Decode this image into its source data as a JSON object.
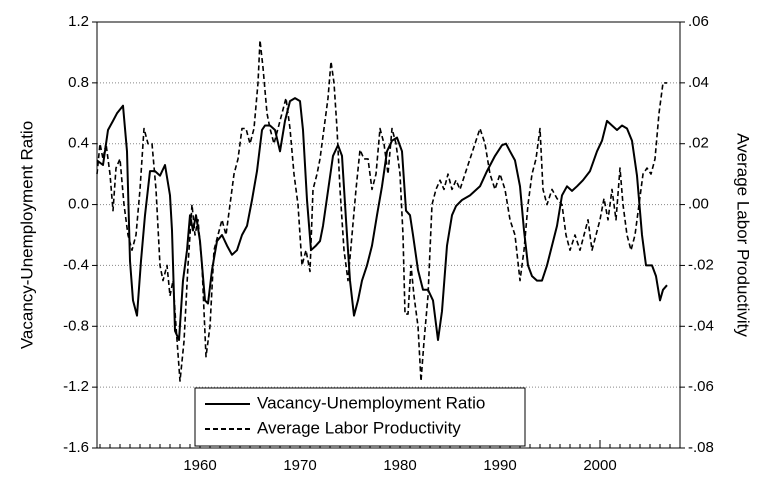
{
  "chart_data": {
    "type": "line",
    "y_label": "Vacancy-Unemployment Ratio",
    "y2_label": "Average Labor Productivity",
    "xlim": [
      1949.7,
      2008.0
    ],
    "xticks": [
      1960,
      1970,
      1980,
      1990,
      2000
    ],
    "ylim": [
      -1.6,
      1.2
    ],
    "yticks": [
      -1.6,
      -1.2,
      -0.8,
      -0.4,
      {
        "value": 0,
        "label": "0.0"
      },
      0.4,
      0.8,
      1.2
    ],
    "y2lim": [
      -0.08,
      0.06
    ],
    "y2ticks": [
      {
        "value": -0.08,
        "label": "-.08"
      },
      {
        "value": -0.06,
        "label": "-.06"
      },
      {
        "value": -0.04,
        "label": "-.04"
      },
      {
        "value": -0.02,
        "label": "-.02"
      },
      {
        "value": 0,
        "label": ".00"
      },
      {
        "value": 0.02,
        "label": ".02"
      },
      {
        "value": 0.04,
        "label": ".04"
      },
      {
        "value": 0.06,
        "label": ".06"
      }
    ],
    "grid": true,
    "legend": "lower center",
    "series": [
      {
        "name": "Vacancy-Unemployment Ratio",
        "color": "#000000",
        "dash": "solid",
        "x": [
          1949.7,
          1950.3,
          1950.8,
          1951.3,
          1951.7,
          1952.3,
          1952.7,
          1953.0,
          1953.3,
          1953.7,
          1954.1,
          1954.5,
          1955.0,
          1955.5,
          1956.0,
          1956.5,
          1957.0,
          1957.2,
          1957.5,
          1957.9,
          1958.3,
          1958.7,
          1959.0,
          1959.3,
          1959.6,
          1960.0,
          1960.5,
          1960.8,
          1961.2,
          1961.7,
          1962.2,
          1962.7,
          1963.2,
          1963.7,
          1964.2,
          1964.7,
          1965.2,
          1965.7,
          1966.2,
          1966.5,
          1967.0,
          1967.5,
          1968.0,
          1968.5,
          1969.0,
          1969.5,
          1970.0,
          1970.3,
          1970.7,
          1971.1,
          1971.6,
          1972.0,
          1972.3,
          1972.8,
          1973.3,
          1973.8,
          1974.2,
          1974.6,
          1975.0,
          1975.4,
          1975.8,
          1976.2,
          1976.7,
          1977.2,
          1977.7,
          1978.2,
          1978.7,
          1979.2,
          1979.7,
          1980.2,
          1980.6,
          1981.0,
          1981.3,
          1981.8,
          1982.3,
          1982.8,
          1983.3,
          1983.8,
          1984.2,
          1984.7,
          1985.2,
          1985.6,
          1986.2,
          1987.0,
          1988.0,
          1988.7,
          1989.5,
          1990.2,
          1990.6,
          1991.0,
          1991.5,
          1992.0,
          1992.4,
          1992.8,
          1993.2,
          1993.7,
          1994.2,
          1994.7,
          1995.2,
          1995.7,
          1996.2,
          1996.7,
          1997.2,
          1997.7,
          1998.3,
          1999.0,
          1999.7,
          2000.2,
          2000.7,
          2001.2,
          2001.7,
          2002.2,
          2002.7,
          2003.2,
          2003.7,
          2004.2,
          2004.6,
          2005.2,
          2005.6,
          2006.0,
          2006.3,
          2006.7
        ],
        "values": [
          0.29,
          0.26,
          0.49,
          0.55,
          0.6,
          0.65,
          0.35,
          -0.37,
          -0.63,
          -0.73,
          -0.37,
          -0.07,
          0.22,
          0.22,
          0.19,
          0.26,
          0.06,
          -0.17,
          -0.83,
          -0.89,
          -0.5,
          -0.3,
          -0.07,
          -0.17,
          -0.07,
          -0.24,
          -0.63,
          -0.65,
          -0.43,
          -0.24,
          -0.2,
          -0.27,
          -0.33,
          -0.3,
          -0.2,
          -0.14,
          0.03,
          0.22,
          0.49,
          0.52,
          0.52,
          0.49,
          0.35,
          0.55,
          0.68,
          0.7,
          0.68,
          0.49,
          0.03,
          -0.3,
          -0.27,
          -0.24,
          -0.14,
          0.09,
          0.32,
          0.39,
          0.32,
          -0.1,
          -0.5,
          -0.73,
          -0.63,
          -0.5,
          -0.4,
          -0.27,
          -0.07,
          0.12,
          0.35,
          0.42,
          0.44,
          0.35,
          -0.04,
          -0.07,
          -0.2,
          -0.43,
          -0.56,
          -0.56,
          -0.63,
          -0.89,
          -0.7,
          -0.27,
          -0.07,
          -0.01,
          0.03,
          0.06,
          0.12,
          0.22,
          0.32,
          0.39,
          0.4,
          0.35,
          0.29,
          0.12,
          -0.17,
          -0.4,
          -0.47,
          -0.5,
          -0.5,
          -0.4,
          -0.27,
          -0.14,
          0.06,
          0.12,
          0.09,
          0.12,
          0.16,
          0.22,
          0.35,
          0.42,
          0.55,
          0.52,
          0.49,
          0.52,
          0.5,
          0.42,
          0.19,
          -0.2,
          -0.4,
          -0.4,
          -0.47,
          -0.63,
          -0.56,
          -0.53
        ]
      },
      {
        "name": "Average Labor Productivity",
        "color": "#000000",
        "dash": "dashed",
        "axis": "y2",
        "x": [
          1949.7,
          1950.0,
          1950.3,
          1950.6,
          1951.0,
          1951.3,
          1951.6,
          1952.0,
          1952.4,
          1952.8,
          1953.2,
          1953.6,
          1954.0,
          1954.4,
          1954.8,
          1955.2,
          1955.6,
          1956.0,
          1956.3,
          1956.7,
          1957.0,
          1957.3,
          1957.6,
          1958.0,
          1958.4,
          1958.8,
          1959.2,
          1959.5,
          1959.8,
          1960.2,
          1960.6,
          1961.0,
          1961.4,
          1961.8,
          1962.2,
          1962.6,
          1963.0,
          1963.4,
          1963.8,
          1964.2,
          1964.6,
          1965.0,
          1965.4,
          1965.8,
          1966.0,
          1966.3,
          1966.7,
          1967.0,
          1967.4,
          1967.8,
          1968.2,
          1968.6,
          1969.0,
          1969.4,
          1969.8,
          1970.2,
          1970.6,
          1971.0,
          1971.3,
          1971.7,
          1972.0,
          1972.4,
          1972.8,
          1973.1,
          1973.4,
          1973.7,
          1974.0,
          1974.4,
          1974.8,
          1975.2,
          1975.6,
          1976.0,
          1976.4,
          1976.8,
          1977.2,
          1977.6,
          1978.0,
          1978.4,
          1978.8,
          1979.2,
          1979.6,
          1980.0,
          1980.3,
          1980.5,
          1980.8,
          1981.1,
          1981.4,
          1981.8,
          1982.1,
          1982.4,
          1982.8,
          1983.2,
          1983.6,
          1984.0,
          1984.4,
          1984.8,
          1985.2,
          1985.6,
          1986.0,
          1986.5,
          1987.0,
          1987.5,
          1988.0,
          1988.5,
          1989.0,
          1989.5,
          1990.0,
          1990.5,
          1991.0,
          1991.5,
          1992.0,
          1992.4,
          1992.8,
          1993.2,
          1993.6,
          1994.0,
          1994.3,
          1994.7,
          1995.2,
          1995.7,
          1996.2,
          1996.6,
          1997.0,
          1997.5,
          1998.0,
          1998.4,
          1998.8,
          1999.2,
          1999.6,
          2000.0,
          2000.4,
          2000.8,
          2001.2,
          2001.6,
          2002.0,
          2002.3,
          2002.7,
          2003.1,
          2003.5,
          2003.9,
          2004.3,
          2004.7,
          2005.1,
          2005.5,
          2005.9,
          2006.3,
          2006.7
        ],
        "values": [
          0.01,
          0.02,
          0.015,
          0.02,
          0.01,
          -0.002,
          0.012,
          0.015,
          0.0,
          -0.01,
          -0.015,
          -0.01,
          0.005,
          0.025,
          0.02,
          0.02,
          0.005,
          -0.02,
          -0.025,
          -0.02,
          -0.03,
          -0.025,
          -0.04,
          -0.058,
          -0.045,
          -0.02,
          0.0,
          -0.01,
          -0.005,
          -0.02,
          -0.05,
          -0.04,
          -0.015,
          -0.01,
          -0.005,
          -0.01,
          0.0,
          0.01,
          0.015,
          0.025,
          0.025,
          0.02,
          0.025,
          0.04,
          0.054,
          0.045,
          0.03,
          0.025,
          0.02,
          0.025,
          0.03,
          0.035,
          0.025,
          0.01,
          0.0,
          -0.02,
          -0.015,
          -0.022,
          0.005,
          0.01,
          0.015,
          0.025,
          0.035,
          0.047,
          0.04,
          0.025,
          0.005,
          -0.015,
          -0.025,
          -0.01,
          0.005,
          0.018,
          0.015,
          0.015,
          0.005,
          0.01,
          0.025,
          0.02,
          0.01,
          0.025,
          0.02,
          0.01,
          -0.01,
          -0.036,
          -0.036,
          -0.02,
          -0.03,
          -0.04,
          -0.058,
          -0.045,
          -0.03,
          0.0,
          0.005,
          0.008,
          0.005,
          0.01,
          0.005,
          0.008,
          0.005,
          0.01,
          0.015,
          0.02,
          0.025,
          0.02,
          0.01,
          0.005,
          0.01,
          0.005,
          -0.005,
          -0.01,
          -0.025,
          -0.015,
          0.0,
          0.01,
          0.015,
          0.025,
          0.005,
          0.0,
          0.005,
          0.002,
          0.0,
          -0.01,
          -0.015,
          -0.01,
          -0.015,
          -0.01,
          -0.005,
          -0.015,
          -0.01,
          -0.005,
          0.002,
          -0.005,
          0.005,
          -0.005,
          0.012,
          0.0,
          -0.01,
          -0.015,
          -0.01,
          0.0,
          0.01,
          0.012,
          0.01,
          0.015,
          0.03,
          0.04,
          0.04
        ]
      }
    ]
  }
}
